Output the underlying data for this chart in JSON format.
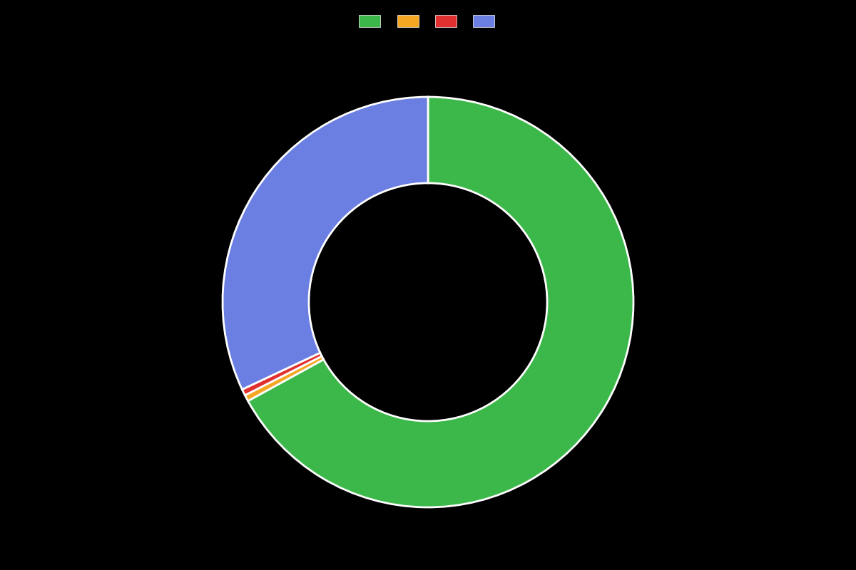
{
  "slices": [
    67,
    0.5,
    0.5,
    32
  ],
  "colors": [
    "#3cb84a",
    "#f5a623",
    "#e03030",
    "#6b7fe3"
  ],
  "background_color": "#000000",
  "wedge_edge_color": "#ffffff",
  "wedge_linewidth": 2,
  "startangle": 90,
  "legend_colors": [
    "#3cb84a",
    "#f5a623",
    "#e03030",
    "#6b7fe3"
  ],
  "donut_width": 0.42,
  "figsize": [
    12.0,
    8.0
  ],
  "dpi": 100
}
